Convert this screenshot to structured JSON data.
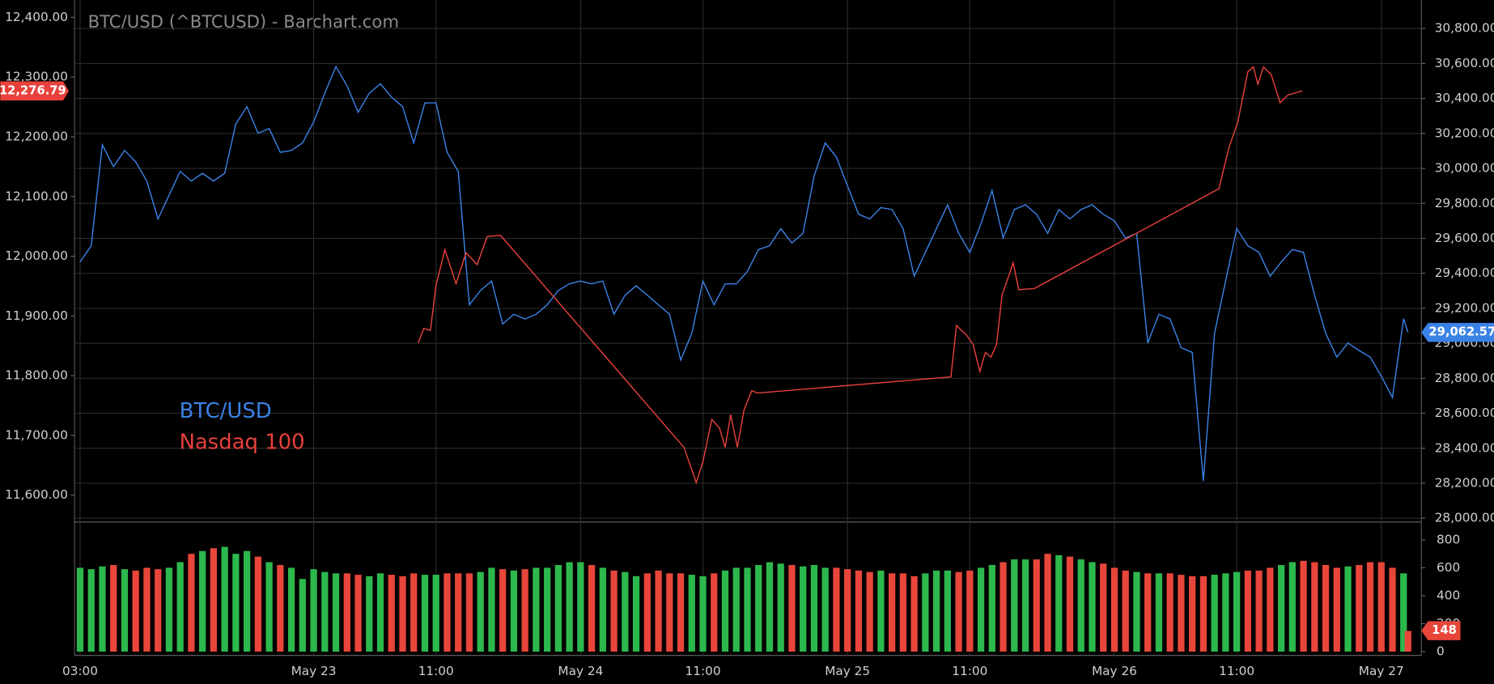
{
  "chart_data": {
    "type": "line",
    "title": "BTC/USD (^BTCUSD) - Barchart.com",
    "xlim": [
      2.5,
      123.6
    ],
    "xticks": [
      {
        "value": 3,
        "label": "03:00"
      },
      {
        "value": 24,
        "label": "May 23"
      },
      {
        "value": 35,
        "label": "11:00"
      },
      {
        "value": 48,
        "label": "May 24"
      },
      {
        "value": 59,
        "label": "11:00"
      },
      {
        "value": 72,
        "label": "May 25"
      },
      {
        "value": 83,
        "label": "11:00"
      },
      {
        "value": 96,
        "label": "May 26"
      },
      {
        "value": 107,
        "label": "11:00"
      },
      {
        "value": 120,
        "label": "May 27"
      }
    ],
    "ylim": [
      11555,
      12429
    ],
    "yticks": [
      {
        "value": 11600,
        "label": "11,600.00"
      },
      {
        "value": 11700,
        "label": "11,700.00"
      },
      {
        "value": 11800,
        "label": "11,800.00"
      },
      {
        "value": 11900,
        "label": "11,900.00"
      },
      {
        "value": 12000,
        "label": "12,000.00"
      },
      {
        "value": 12100,
        "label": "12,100.00"
      },
      {
        "value": 12200,
        "label": "12,200.00"
      },
      {
        "value": 12300,
        "label": "12,300.00"
      },
      {
        "value": 12400,
        "label": "12,400.00"
      }
    ],
    "y2lim": [
      27978,
      30963
    ],
    "y2ticks": [
      {
        "value": 28000,
        "label": "28,000.00"
      },
      {
        "value": 28200,
        "label": "28,200.00"
      },
      {
        "value": 28400,
        "label": "28,400.00"
      },
      {
        "value": 28600,
        "label": "28,600.00"
      },
      {
        "value": 28800,
        "label": "28,800.00"
      },
      {
        "value": 29000,
        "label": "29,000.00"
      },
      {
        "value": 29200,
        "label": "29,200.00"
      },
      {
        "value": 29400,
        "label": "29,400.00"
      },
      {
        "value": 29600,
        "label": "29,600.00"
      },
      {
        "value": 29800,
        "label": "29,800.00"
      },
      {
        "value": 30000,
        "label": "30,000.00"
      },
      {
        "value": 30200,
        "label": "30,200.00"
      },
      {
        "value": 30400,
        "label": "30,400.00"
      },
      {
        "value": 30600,
        "label": "30,600.00"
      },
      {
        "value": 30800,
        "label": "30,800.00"
      }
    ],
    "grid": true,
    "series": [
      {
        "name": "BTC/USD",
        "color": "#3b82e6",
        "axis": "y2",
        "x": [
          3,
          4,
          5,
          6,
          7,
          8,
          9,
          10,
          11,
          12,
          13,
          14,
          15,
          16,
          17,
          18,
          19,
          20,
          21,
          22,
          23,
          24,
          25,
          26,
          27,
          28,
          29,
          30,
          31,
          32,
          33,
          34,
          35,
          36,
          37,
          38,
          39,
          40,
          41,
          42,
          43,
          44,
          45,
          46,
          47,
          48,
          49,
          50,
          51,
          52,
          53,
          54,
          55,
          56,
          57,
          58,
          59,
          60,
          61,
          62,
          63,
          64,
          65,
          66,
          67,
          68,
          69,
          70,
          71,
          72,
          73,
          74,
          75,
          76,
          77,
          78,
          79,
          80,
          81,
          82,
          83,
          84,
          85,
          86,
          87,
          88,
          89,
          90,
          91,
          92,
          93,
          94,
          95,
          96,
          97,
          98,
          99,
          100,
          101,
          102,
          103,
          104,
          105,
          106,
          107,
          108,
          109,
          110,
          111,
          112,
          113,
          114,
          115,
          116,
          117,
          118,
          119,
          120,
          121,
          122,
          122.4
        ],
        "values": [
          29465,
          29558,
          30135,
          30010,
          30103,
          30037,
          29928,
          29711,
          29847,
          29983,
          29928,
          29972,
          29928,
          29972,
          30255,
          30353,
          30201,
          30228,
          30092,
          30103,
          30146,
          30266,
          30430,
          30582,
          30473,
          30321,
          30430,
          30484,
          30408,
          30353,
          30146,
          30375,
          30375,
          30092,
          29983,
          29220,
          29302,
          29356,
          29111,
          29166,
          29139,
          29166,
          29220,
          29302,
          29340,
          29356,
          29340,
          29356,
          29166,
          29275,
          29329,
          29275,
          29220,
          29166,
          28904,
          29057,
          29356,
          29220,
          29340,
          29340,
          29411,
          29536,
          29558,
          29656,
          29574,
          29629,
          29956,
          30146,
          30065,
          29901,
          29738,
          29711,
          29776,
          29765,
          29656,
          29384,
          29520,
          29656,
          29792,
          29629,
          29520,
          29683,
          29874,
          29602,
          29765,
          29792,
          29738,
          29629,
          29765,
          29711,
          29765,
          29792,
          29738,
          29700,
          29602,
          29629,
          29002,
          29166,
          29139,
          28975,
          28948,
          28212,
          29057,
          29356,
          29656,
          29558,
          29520,
          29384,
          29465,
          29536,
          29520,
          29275,
          29057,
          28921,
          29002,
          28959,
          28921,
          28812,
          28690,
          29140,
          29062.57
        ],
        "last_label": "29,062.57"
      },
      {
        "name": "Nasdaq 100",
        "color": "#e8413c",
        "axis": "y",
        "x": [
          33.4,
          33.9,
          34.5,
          35.0,
          35.8,
          36.8,
          37.7,
          38.7,
          39.6,
          40.8,
          57.3,
          58.4,
          59.0,
          59.8,
          60.5,
          61.0,
          61.5,
          62.1,
          62.7,
          63.4,
          63.9,
          81.3,
          81.8,
          82.7,
          83.3,
          83.9,
          84.4,
          84.9,
          85.4,
          85.9,
          86.9,
          87.4,
          88.8,
          105.4,
          106.3,
          107.1,
          108.0,
          108.5,
          108.9,
          109.4,
          110.1,
          110.9,
          111.6,
          112.9
        ],
        "values": [
          11855,
          11879,
          11876,
          11951,
          12011,
          11954,
          12006,
          11986,
          12033,
          12035,
          11680,
          11621,
          11656,
          11727,
          11712,
          11680,
          11735,
          11680,
          11743,
          11775,
          11771,
          11798,
          11884,
          11868,
          11852,
          11807,
          11839,
          11831,
          11852,
          11935,
          11989,
          11944,
          11946,
          12113,
          12182,
          12225,
          12309,
          12317,
          12288,
          12317,
          12304,
          12257,
          12270,
          12276.79
        ],
        "last_label": "12,276.79"
      }
    ],
    "volume": {
      "ylim": [
        0,
        900
      ],
      "yticks": [
        0,
        200,
        400,
        600,
        800
      ],
      "up_color": "#2db84d",
      "down_color": "#e8463b",
      "values": [
        600,
        590,
        610,
        620,
        590,
        580,
        600,
        590,
        600,
        640,
        700,
        720,
        740,
        750,
        700,
        720,
        680,
        640,
        620,
        600,
        520,
        590,
        570,
        560,
        560,
        550,
        540,
        560,
        550,
        540,
        560,
        550,
        550,
        560,
        560,
        560,
        570,
        600,
        590,
        580,
        590,
        600,
        600,
        620,
        640,
        640,
        620,
        600,
        580,
        570,
        540,
        560,
        580,
        560,
        560,
        550,
        540,
        560,
        580,
        600,
        600,
        620,
        640,
        630,
        620,
        610,
        620,
        600,
        600,
        590,
        580,
        570,
        580,
        560,
        560,
        540,
        560,
        580,
        580,
        570,
        580,
        600,
        620,
        640,
        660,
        660,
        660,
        700,
        690,
        680,
        660,
        640,
        630,
        600,
        580,
        570,
        560,
        560,
        560,
        550,
        540,
        540,
        550,
        560,
        570,
        580,
        580,
        600,
        620,
        640,
        650,
        640,
        620,
        600,
        610,
        620,
        640,
        640,
        600,
        560,
        148
      ]
    }
  }
}
